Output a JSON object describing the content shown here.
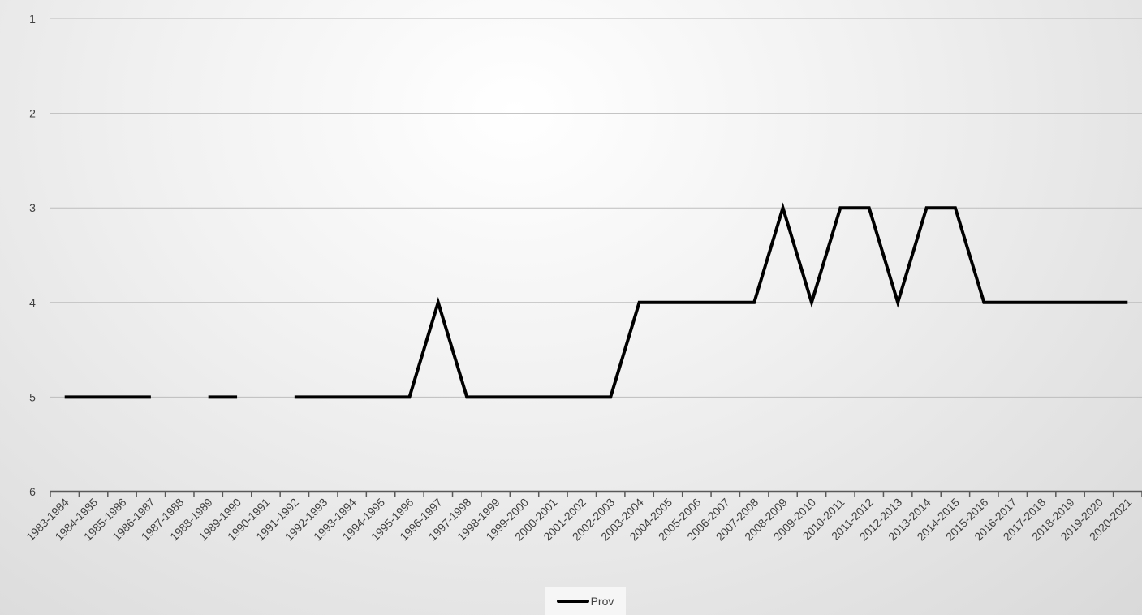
{
  "chart_data": {
    "type": "line",
    "title": "",
    "xlabel": "",
    "ylabel": "",
    "y_reversed": true,
    "ylim": [
      1,
      6
    ],
    "yticks": [
      1,
      2,
      3,
      4,
      5,
      6
    ],
    "grid": true,
    "legend_position": "bottom",
    "categories": [
      "1983-1984",
      "1984-1985",
      "1985-1986",
      "1986-1987",
      "1987-1988",
      "1988-1989",
      "1989-1990",
      "1990-1991",
      "1991-1992",
      "1992-1993",
      "1993-1994",
      "1994-1995",
      "1995-1996",
      "1996-1997",
      "1997-1998",
      "1998-1999",
      "1999-2000",
      "2000-2001",
      "2001-2002",
      "2002-2003",
      "2003-2004",
      "2004-2005",
      "2005-2006",
      "2006-2007",
      "2007-2008",
      "2008-2009",
      "2009-2010",
      "2010-2011",
      "2011-2012",
      "2012-2013",
      "2013-2014",
      "2014-2015",
      "2015-2016",
      "2016-2017",
      "2017-2018",
      "2018-2019",
      "2019-2020",
      "2020-2021"
    ],
    "series": [
      {
        "name": "Prov",
        "color": "#000000",
        "values": [
          5,
          5,
          5,
          5,
          null,
          5,
          5,
          null,
          5,
          5,
          5,
          5,
          5,
          4,
          5,
          5,
          5,
          5,
          5,
          5,
          4,
          4,
          4,
          4,
          4,
          3,
          4,
          3,
          3,
          4,
          3,
          3,
          4,
          4,
          4,
          4,
          4,
          4
        ]
      }
    ]
  }
}
